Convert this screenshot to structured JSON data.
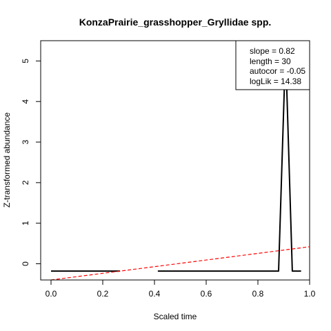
{
  "chart_data": {
    "type": "line",
    "title": "KonzaPrairie_grasshopper_Gryllidae spp.",
    "xlabel": "Scaled time",
    "ylabel": "Z-transformed abundance",
    "xlim": [
      -0.04,
      1.0
    ],
    "ylim": [
      -0.4,
      5.5
    ],
    "x_ticks": [
      "0.0",
      "0.2",
      "0.4",
      "0.6",
      "0.8",
      "1.0"
    ],
    "y_ticks": [
      "0",
      "1",
      "2",
      "3",
      "4",
      "5"
    ],
    "grid": false,
    "series": [
      {
        "style": "solid",
        "color": "#000000",
        "segments": [
          [
            [
              0.0,
              -0.18
            ],
            [
              0.267,
              -0.18
            ]
          ],
          [
            [
              0.413,
              -0.18
            ],
            [
              0.88,
              -0.18
            ],
            [
              0.907,
              5.3
            ],
            [
              0.933,
              -0.18
            ],
            [
              0.967,
              -0.18
            ]
          ]
        ]
      },
      {
        "style": "dashed",
        "color": "#ff0000",
        "segments": [
          [
            [
              0.0,
              -0.4
            ],
            [
              1.0,
              0.42
            ]
          ]
        ]
      }
    ],
    "legend": {
      "placement": "top-right",
      "lines": [
        "slope = 0.82",
        "length = 30",
        "autocor = -0.05",
        "logLik = 14.38"
      ]
    }
  }
}
